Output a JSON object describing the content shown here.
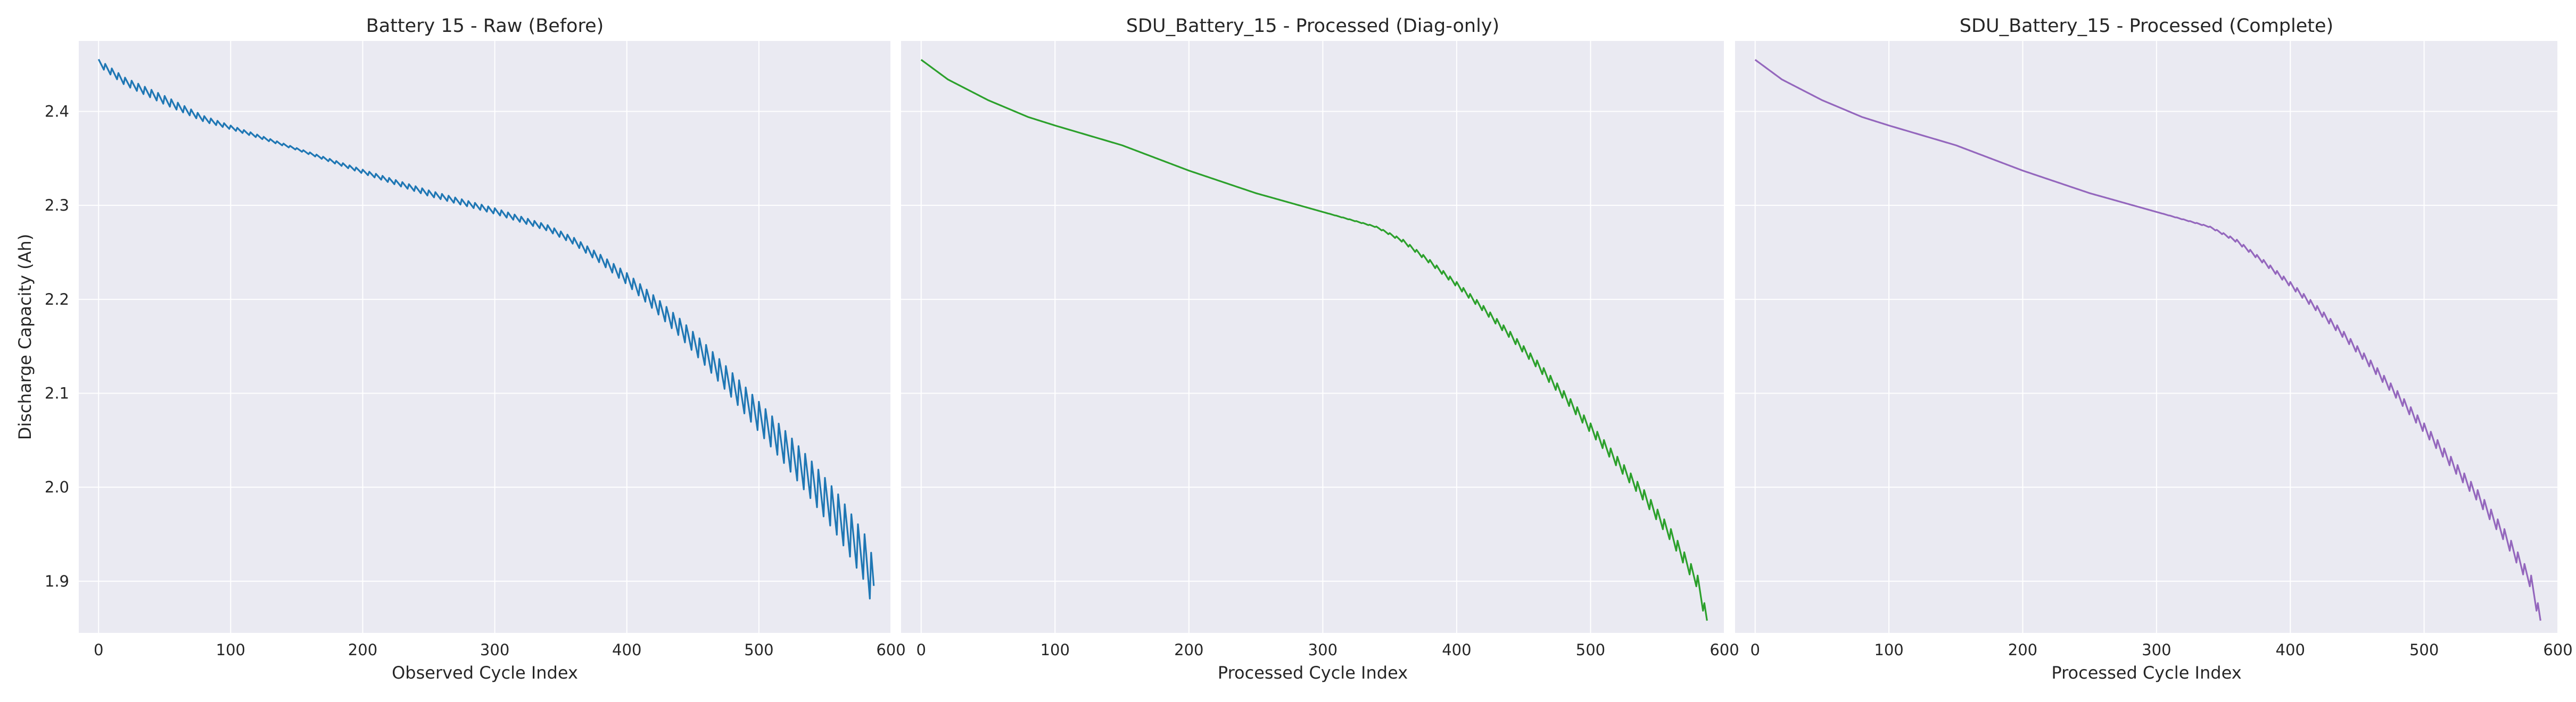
{
  "figure": {
    "background": "#ffffff",
    "plot_background": "#eaeaf2",
    "grid_color": "#ffffff"
  },
  "chart_data": [
    {
      "type": "line",
      "title": "Battery 15 - Raw (Before)",
      "xlabel": "Observed Cycle Index",
      "ylabel": "Discharge Capacity (Ah)",
      "color": "#1f77b4",
      "xlim": [
        -15,
        600
      ],
      "ylim": [
        1.845,
        2.475
      ],
      "xticks": [
        0,
        100,
        200,
        300,
        400,
        500,
        600
      ],
      "yticks": [
        1.9,
        2.0,
        2.1,
        2.2,
        2.3,
        2.4
      ],
      "x": [
        0,
        20,
        50,
        80,
        100,
        150,
        200,
        250,
        300,
        340,
        360,
        380,
        400,
        420,
        440,
        460,
        480,
        500,
        520,
        540,
        560,
        580,
        587
      ],
      "y": [
        2.452,
        2.432,
        2.412,
        2.392,
        2.383,
        2.36,
        2.336,
        2.313,
        2.294,
        2.276,
        2.262,
        2.243,
        2.222,
        2.197,
        2.17,
        2.14,
        2.108,
        2.075,
        2.042,
        2.007,
        1.97,
        1.925,
        1.895
      ],
      "oscillation_amplitude": [
        0.007,
        0.008,
        0.009,
        0.006,
        0.004,
        0.002,
        0.004,
        0.006,
        0.006,
        0.006,
        0.007,
        0.009,
        0.012,
        0.015,
        0.019,
        0.023,
        0.027,
        0.032,
        0.036,
        0.041,
        0.045,
        0.05,
        0.055
      ],
      "grid": true
    },
    {
      "type": "line",
      "title": "SDU_Battery_15 - Processed (Diag-only)",
      "xlabel": "Processed Cycle Index",
      "ylabel": "",
      "color": "#2ca02c",
      "xlim": [
        -15,
        600
      ],
      "ylim": [
        1.845,
        2.475
      ],
      "xticks": [
        0,
        100,
        200,
        300,
        400,
        500,
        600
      ],
      "yticks": [
        1.9,
        2.0,
        2.1,
        2.2,
        2.3,
        2.4
      ],
      "x": [
        0,
        20,
        50,
        80,
        100,
        150,
        200,
        250,
        300,
        340,
        360,
        380,
        400,
        420,
        440,
        460,
        480,
        500,
        520,
        540,
        560,
        580,
        587
      ],
      "y": [
        2.455,
        2.434,
        2.412,
        2.394,
        2.385,
        2.364,
        2.337,
        2.313,
        2.293,
        2.277,
        2.262,
        2.24,
        2.216,
        2.19,
        2.162,
        2.131,
        2.098,
        2.063,
        2.027,
        1.991,
        1.949,
        1.899,
        1.858
      ],
      "oscillation_amplitude": [
        0,
        0,
        0,
        0,
        0,
        0,
        0,
        0,
        0,
        0.001,
        0.003,
        0.004,
        0.005,
        0.006,
        0.007,
        0.008,
        0.009,
        0.01,
        0.011,
        0.012,
        0.013,
        0.014,
        0.014
      ],
      "grid": true
    },
    {
      "type": "line",
      "title": "SDU_Battery_15 - Processed (Complete)",
      "xlabel": "Processed Cycle Index",
      "ylabel": "",
      "color": "#9467bd",
      "xlim": [
        -15,
        600
      ],
      "ylim": [
        1.845,
        2.475
      ],
      "xticks": [
        0,
        100,
        200,
        300,
        400,
        500,
        600
      ],
      "yticks": [
        1.9,
        2.0,
        2.1,
        2.2,
        2.3,
        2.4
      ],
      "x": [
        0,
        20,
        50,
        80,
        100,
        150,
        200,
        250,
        300,
        340,
        360,
        380,
        400,
        420,
        440,
        460,
        480,
        500,
        520,
        540,
        560,
        580,
        587
      ],
      "y": [
        2.455,
        2.434,
        2.412,
        2.394,
        2.385,
        2.364,
        2.337,
        2.313,
        2.293,
        2.277,
        2.262,
        2.24,
        2.216,
        2.19,
        2.162,
        2.131,
        2.098,
        2.063,
        2.027,
        1.991,
        1.949,
        1.899,
        1.858
      ],
      "oscillation_amplitude": [
        0,
        0,
        0,
        0,
        0,
        0,
        0,
        0,
        0,
        0.001,
        0.003,
        0.004,
        0.005,
        0.006,
        0.007,
        0.008,
        0.009,
        0.01,
        0.011,
        0.012,
        0.013,
        0.014,
        0.014
      ],
      "grid": true
    }
  ]
}
